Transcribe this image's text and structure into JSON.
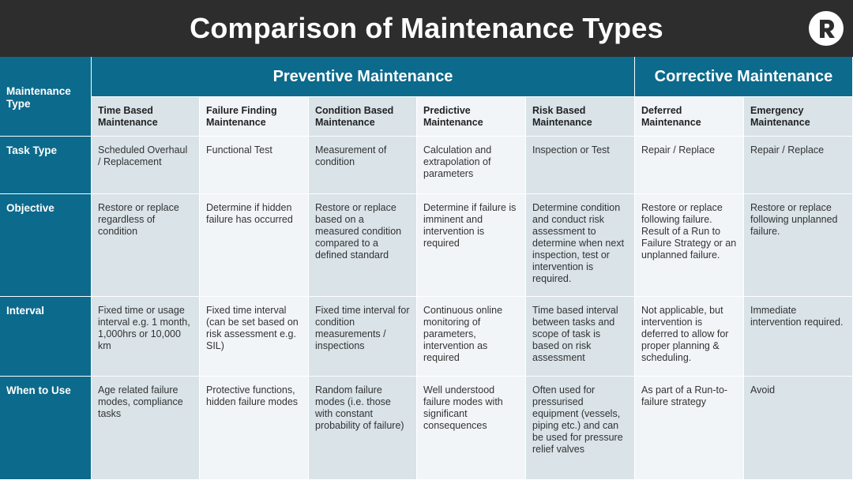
{
  "title": "Comparison of Maintenance Types",
  "logo_icon": "r-logo-icon",
  "corner_label": "Maintenance Type",
  "groups": {
    "preventive": "Preventive Maintenance",
    "corrective": "Corrective Maintenance"
  },
  "types": [
    "Time Based Maintenance",
    "Failure Finding Maintenance",
    "Condition Based Maintenance",
    "Predictive Maintenance",
    "Risk Based Maintenance",
    "Deferred Maintenance",
    "Emergency Maintenance"
  ],
  "rows": [
    {
      "label": "Task Type",
      "cells": [
        "Scheduled Overhaul / Replacement",
        "Functional Test",
        "Measurement of condition",
        "Calculation and extrapolation of parameters",
        "Inspection or Test",
        "Repair / Replace",
        "Repair / Replace"
      ]
    },
    {
      "label": "Objective",
      "cells": [
        "Restore or replace regardless of condition",
        "Determine if hidden failure has occurred",
        "Restore or replace based on a measured condition compared to a defined standard",
        "Determine if failure is imminent and intervention is required",
        "Determine condition and conduct risk assessment to determine when next inspection, test or intervention is required.",
        "Restore or replace following failure. Result of a Run to Failure Strategy or an unplanned failure.",
        "Restore or replace following unplanned failure."
      ]
    },
    {
      "label": "Interval",
      "cells": [
        "Fixed time or usage interval e.g. 1 month, 1,000hrs or 10,000 km",
        "Fixed time interval (can be set based on risk assessment e.g. SIL)",
        "Fixed time interval for condition measurements / inspections",
        "Continuous online monitoring of parameters, intervention as required",
        "Time based interval between tasks and scope of task is based on risk assessment",
        "Not applicable, but intervention is deferred to allow for proper planning & scheduling.",
        "Immediate intervention required."
      ]
    },
    {
      "label": "When to Use",
      "cells": [
        "Age related failure modes, compliance tasks",
        "Protective functions, hidden failure modes",
        "Random failure modes (i.e. those with constant probability of failure)",
        "Well understood failure modes with significant consequences",
        "Often used for pressurised equipment (vessels, piping etc.) and can be used for pressure relief valves",
        "As part of a Run-to-failure strategy",
        "Avoid"
      ]
    }
  ],
  "colors": {
    "title_bg": "#2d2d2d",
    "header_blue": "#0c6a8c",
    "shade_cell": "#d9e3e8",
    "light_cell": "#f2f5f7"
  }
}
